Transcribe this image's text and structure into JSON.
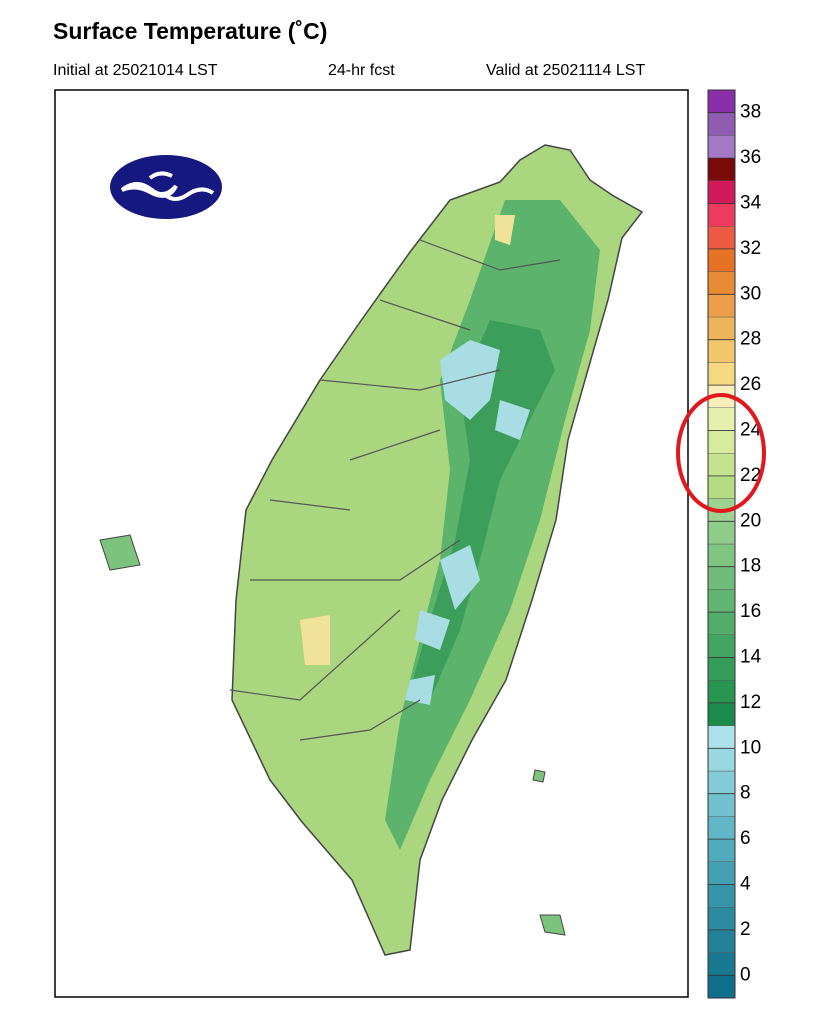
{
  "header": {
    "title": "Surface Temperature (˚C)",
    "initial": "Initial at 25021014 LST",
    "forecast": "24-hr fcst",
    "valid": "Valid at 25021114 LST"
  },
  "colorbar": {
    "lim": [
      -1,
      39
    ],
    "ticks": [
      0,
      2,
      4,
      6,
      8,
      10,
      12,
      14,
      16,
      18,
      20,
      22,
      24,
      26,
      28,
      30,
      32,
      34,
      36,
      38
    ],
    "colors": [
      "#0f6f8a",
      "#18788f",
      "#228197",
      "#2c8b9f",
      "#3795a8",
      "#44a0b1",
      "#52abbb",
      "#62b6c5",
      "#73c1cf",
      "#86ccd8",
      "#99d7e1",
      "#aee2ea",
      "#1b8a4a",
      "#289452",
      "#369c5a",
      "#44a462",
      "#52ac6a",
      "#61b472",
      "#70bc7a",
      "#80c482",
      "#8fcb89",
      "#9dd290",
      "#b4dc82",
      "#c5e38f",
      "#d6eb9e",
      "#e6f0ae",
      "#f6efbb",
      "#f4d981",
      "#f1c66c",
      "#eeb45c",
      "#eb9f4a",
      "#e98a35",
      "#e67325",
      "#ee5b44",
      "#ee3a5c",
      "#d2195a",
      "#7a0a0a",
      "#a379c4",
      "#8f5cb2",
      "#8a2fa8"
    ]
  }
}
